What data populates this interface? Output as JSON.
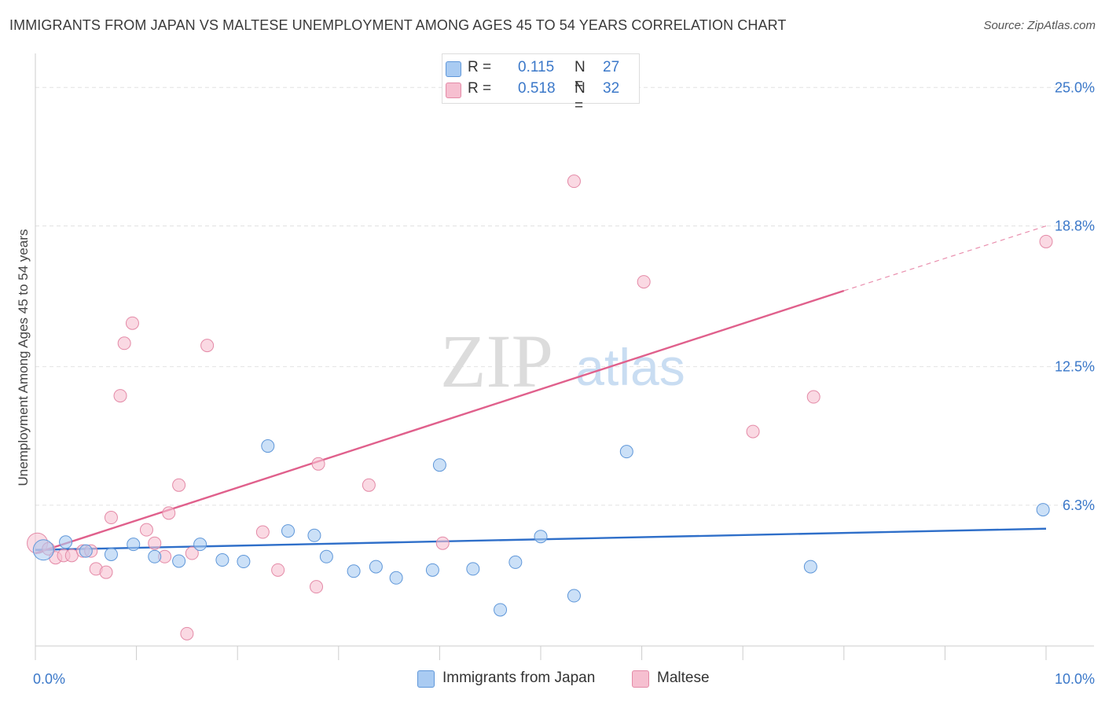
{
  "header": {
    "title": "IMMIGRANTS FROM JAPAN VS MALTESE UNEMPLOYMENT AMONG AGES 45 TO 54 YEARS CORRELATION CHART",
    "source": "Source: ZipAtlas.com"
  },
  "watermark": {
    "zip": "ZIP",
    "atlas": "atlas"
  },
  "legend_top": {
    "rows": [
      {
        "r_label": "R =",
        "r_value": "0.115",
        "n_label": "N =",
        "n_value": "27"
      },
      {
        "r_label": "R =",
        "r_value": "0.518",
        "n_label": "N =",
        "n_value": "32"
      }
    ]
  },
  "legend_bottom": {
    "items": [
      {
        "label": "Immigrants from Japan"
      },
      {
        "label": "Maltese"
      }
    ]
  },
  "colors": {
    "japan_fill": "#a9cbf2",
    "japan_stroke": "#5f97d9",
    "japan_line": "#2f6fc9",
    "maltese_fill": "#f6bfd0",
    "maltese_stroke": "#e48aa7",
    "maltese_line": "#e0608c",
    "grid": "#e2e2e2",
    "tick_label": "#3b78c9"
  },
  "chart_data": {
    "type": "scatter",
    "title": "IMMIGRANTS FROM JAPAN VS MALTESE UNEMPLOYMENT AMONG AGES 45 TO 54 YEARS CORRELATION CHART",
    "xlabel": "",
    "ylabel": "Unemployment Among Ages 45 to 54 years",
    "xlim": [
      0,
      10
    ],
    "ylim": [
      0,
      26.1
    ],
    "x_tick_labels": [
      {
        "value": 0,
        "label": "0.0%"
      },
      {
        "value": 10,
        "label": "10.0%"
      }
    ],
    "y_tick_labels": [
      {
        "value": 6.3,
        "label": "6.3%"
      },
      {
        "value": 12.5,
        "label": "12.5%"
      },
      {
        "value": 18.8,
        "label": "18.8%"
      },
      {
        "value": 25.0,
        "label": "25.0%"
      }
    ],
    "grid": true,
    "legend_position": "bottom",
    "series": [
      {
        "name": "Immigrants from Japan",
        "r": 0.115,
        "n": 27,
        "points": [
          [
            0.08,
            4.3
          ],
          [
            0.3,
            4.65
          ],
          [
            0.5,
            4.25
          ],
          [
            0.75,
            4.1
          ],
          [
            0.97,
            4.55
          ],
          [
            1.18,
            4.0
          ],
          [
            1.42,
            3.8
          ],
          [
            1.63,
            4.55
          ],
          [
            1.85,
            3.85
          ],
          [
            2.06,
            3.78
          ],
          [
            2.3,
            8.95
          ],
          [
            2.5,
            5.15
          ],
          [
            2.76,
            4.95
          ],
          [
            2.88,
            4.0
          ],
          [
            3.15,
            3.35
          ],
          [
            3.37,
            3.55
          ],
          [
            3.57,
            3.05
          ],
          [
            3.93,
            3.4
          ],
          [
            4.0,
            8.1
          ],
          [
            4.33,
            3.45
          ],
          [
            4.6,
            1.62
          ],
          [
            4.75,
            3.75
          ],
          [
            5.0,
            4.9
          ],
          [
            5.33,
            2.25
          ],
          [
            5.85,
            8.7
          ],
          [
            7.67,
            3.55
          ],
          [
            9.97,
            6.1
          ]
        ],
        "trend": {
          "x": [
            0,
            10
          ],
          "y": [
            4.3,
            5.25
          ]
        }
      },
      {
        "name": "Maltese",
        "r": 0.518,
        "n": 32,
        "points": [
          [
            0.02,
            4.6
          ],
          [
            0.13,
            4.35
          ],
          [
            0.2,
            3.95
          ],
          [
            0.28,
            4.05
          ],
          [
            0.36,
            4.05
          ],
          [
            0.47,
            4.25
          ],
          [
            0.55,
            4.25
          ],
          [
            0.6,
            3.45
          ],
          [
            0.7,
            3.3
          ],
          [
            0.75,
            5.75
          ],
          [
            0.84,
            11.2
          ],
          [
            0.88,
            13.55
          ],
          [
            0.96,
            14.45
          ],
          [
            1.1,
            5.2
          ],
          [
            1.18,
            4.6
          ],
          [
            1.28,
            4.0
          ],
          [
            1.32,
            5.95
          ],
          [
            1.42,
            7.2
          ],
          [
            1.5,
            0.55
          ],
          [
            1.55,
            4.15
          ],
          [
            1.7,
            13.45
          ],
          [
            2.25,
            5.1
          ],
          [
            2.4,
            3.4
          ],
          [
            2.78,
            2.65
          ],
          [
            2.8,
            8.15
          ],
          [
            3.3,
            7.2
          ],
          [
            4.03,
            4.6
          ],
          [
            5.33,
            20.8
          ],
          [
            6.02,
            16.3
          ],
          [
            7.1,
            9.6
          ],
          [
            7.7,
            11.15
          ],
          [
            10.0,
            18.1
          ]
        ],
        "trend": {
          "x": [
            0,
            8.0
          ],
          "y": [
            4.15,
            15.9
          ],
          "dashed_to": {
            "x": 10,
            "y": 18.8
          }
        }
      }
    ]
  }
}
